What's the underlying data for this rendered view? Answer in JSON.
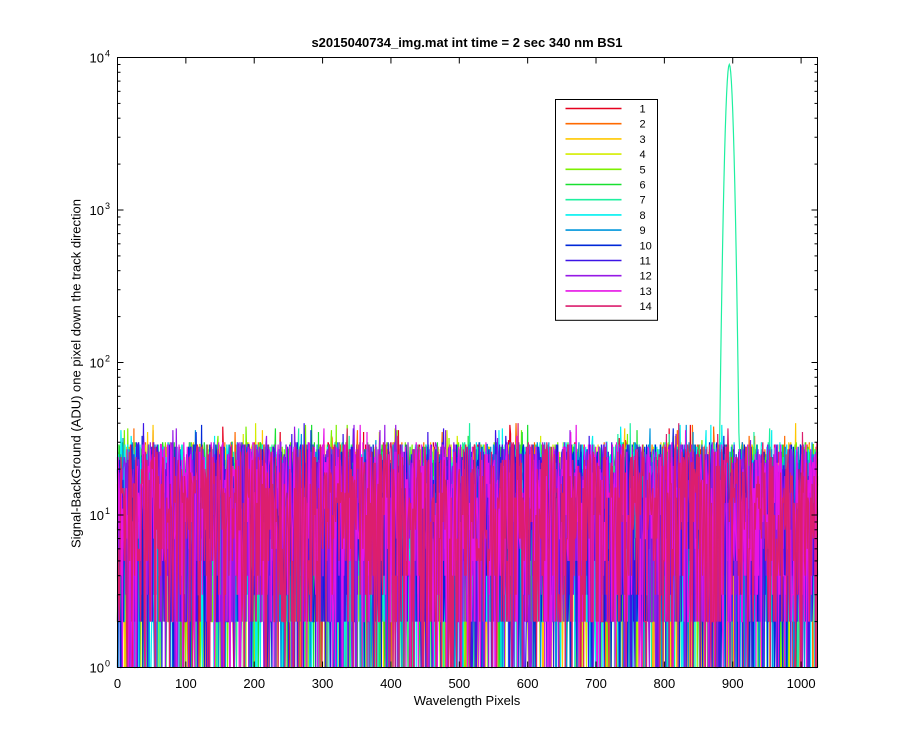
{
  "chart_data": {
    "type": "line",
    "title": "s2015040734_img.mat int time = 2 sec  340 nm BS1",
    "xlabel": "Wavelength Pixels",
    "ylabel": "Signal-BackGround (ADU) one pixel down the track direction",
    "xlim": [
      0,
      1024
    ],
    "ylim": [
      1,
      10000
    ],
    "y_scale": "log",
    "x_ticks": [
      "0",
      "100",
      "200",
      "300",
      "400",
      "500",
      "600",
      "700",
      "800",
      "900",
      "1000"
    ],
    "y_ticks": [
      {
        "base": "10",
        "exp": "0"
      },
      {
        "base": "10",
        "exp": "1"
      },
      {
        "base": "10",
        "exp": "2"
      },
      {
        "base": "10",
        "exp": "3"
      },
      {
        "base": "10",
        "exp": "4"
      }
    ],
    "grid": false,
    "legend_position": "top-right",
    "noise_floor": {
      "typical_range": [
        2,
        30
      ],
      "max": 40
    },
    "peak": {
      "series": "7",
      "center_x": 895,
      "peak_y": 9000,
      "secondary_x": 900,
      "secondary_y": 60
    },
    "series": [
      {
        "name": "1",
        "color": "#e6001e"
      },
      {
        "name": "2",
        "color": "#ff6a00"
      },
      {
        "name": "3",
        "color": "#ffc800"
      },
      {
        "name": "4",
        "color": "#d4ed00"
      },
      {
        "name": "5",
        "color": "#7cf000"
      },
      {
        "name": "6",
        "color": "#19e030"
      },
      {
        "name": "7",
        "color": "#1ef0a0"
      },
      {
        "name": "8",
        "color": "#00f0f0"
      },
      {
        "name": "9",
        "color": "#0096dc"
      },
      {
        "name": "10",
        "color": "#0028d8"
      },
      {
        "name": "11",
        "color": "#3c14e6"
      },
      {
        "name": "12",
        "color": "#9619e6"
      },
      {
        "name": "13",
        "color": "#e614e6"
      },
      {
        "name": "14",
        "color": "#dc1e6e"
      }
    ]
  }
}
